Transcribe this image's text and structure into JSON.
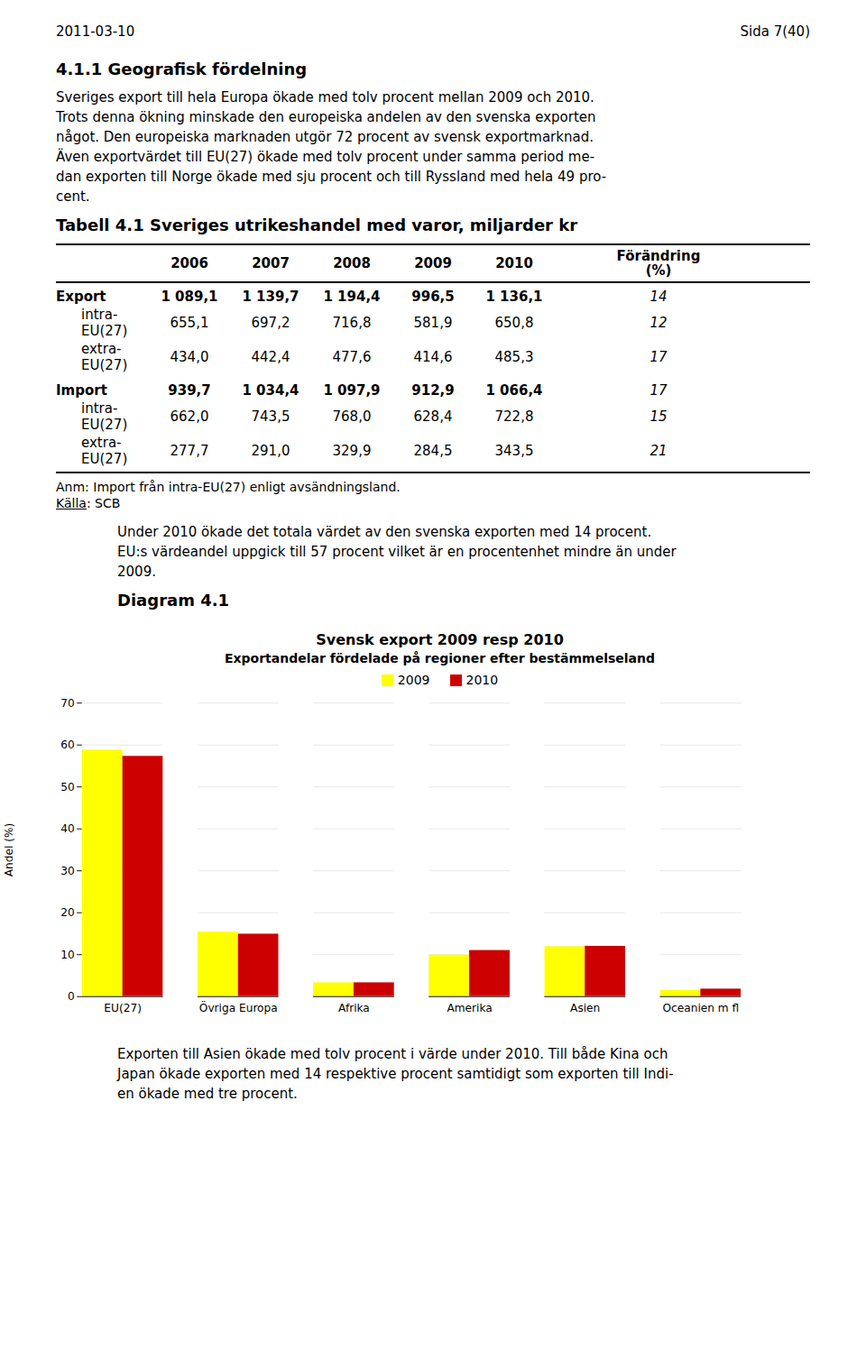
{
  "page_header_left": "2011-03-10",
  "page_header_right": "Sida 7(40)",
  "section_title": "4.1.1 Geografisk fördelning",
  "para1_lines": [
    "Sveriges export till hela Europa ökade med tolv procent mellan 2009 och 2010.",
    "Trots denna ökning minskade den europeiska andelen av den svenska exporten",
    "något. Den europeiska marknaden utgör 72 procent av svensk exportmarknad.",
    "Även exportvärdet till EU(27) ökade med tolv procent under samma period me-",
    "dan exporten till Norge ökade med sju procent och till Ryssland med hela 49 pro-",
    "cent."
  ],
  "table_title": "Tabell 4.1 Sveriges utrikeshandel med varor, miljarder kr",
  "table_columns": [
    "2006",
    "2007",
    "2008",
    "2009",
    "2010"
  ],
  "table_change_header": [
    "Förändring",
    "(%)"
  ],
  "table_groups": [
    [
      [
        "Export",
        "1 089,1",
        "1 139,7",
        "1 194,4",
        "996,5",
        "1 136,1",
        "14"
      ],
      [
        "intra-EU(27)",
        "655,1",
        "697,2",
        "716,8",
        "581,9",
        "650,8",
        "12"
      ],
      [
        "extra-EU(27)",
        "434,0",
        "442,4",
        "477,6",
        "414,6",
        "485,3",
        "17"
      ]
    ],
    [
      [
        "Import",
        "939,7",
        "1 034,4",
        "1 097,9",
        "912,9",
        "1 066,4",
        "17"
      ],
      [
        "intra-EU(27)",
        "662,0",
        "743,5",
        "768,0",
        "628,4",
        "722,8",
        "15"
      ],
      [
        "extra-EU(27)",
        "277,7",
        "291,0",
        "329,9",
        "284,5",
        "343,5",
        "21"
      ]
    ]
  ],
  "table_note": "Anm: Import från intra-EU(27) enligt avsändningsland.",
  "table_source_prefix": "Källa",
  "table_source_suffix": ": SCB",
  "para2_lines": [
    "Under 2010 ökade det totala värdet av den svenska exporten med 14 procent.",
    "EU:s värdeandel uppgick till 57 procent vilket är en procentenhet mindre än under",
    "2009."
  ],
  "diagram_label": "Diagram 4.1",
  "para3_lines": [
    "Exporten till Asien ökade med tolv procent i värde under 2010. Till både Kina och",
    "Japan ökade exporten med 14 respektive procent samtidigt som exporten till Indi-",
    "en ökade med tre procent."
  ],
  "chart_data": {
    "type": "bar",
    "title": "Svensk export 2009 resp 2010",
    "subtitle": "Exportandelar fördelade på regioner efter bestämmelseland",
    "categories": [
      "EU(27)",
      "Övriga Europa",
      "Afrika",
      "Amerika",
      "Asien",
      "Oceanien m fl"
    ],
    "series": [
      {
        "name": "2009",
        "color": "#FFFF00",
        "values": [
          58.8,
          15.4,
          3.3,
          9.9,
          11.9,
          1.5
        ]
      },
      {
        "name": "2010",
        "color": "#CC0000",
        "values": [
          57.3,
          14.9,
          3.3,
          11.0,
          12.0,
          1.8
        ]
      }
    ],
    "ylabel": "Andel (%)",
    "ylim": [
      0,
      70
    ],
    "yticks": [
      0,
      10,
      20,
      30,
      40,
      50,
      60,
      70
    ],
    "grid": true,
    "legend": "top"
  }
}
